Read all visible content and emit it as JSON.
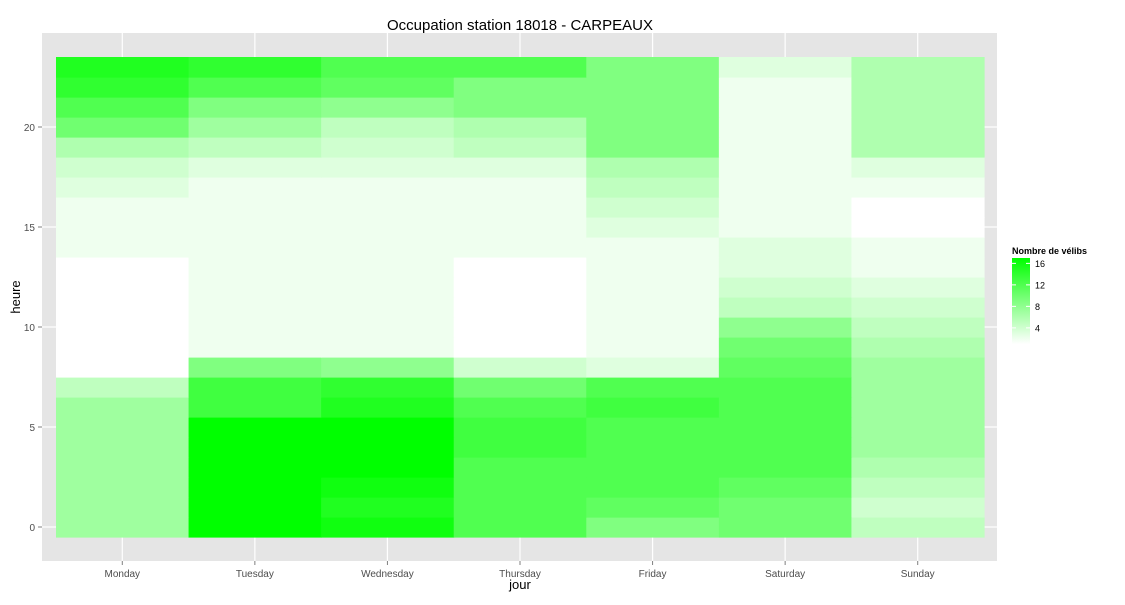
{
  "chart_data": {
    "type": "heatmap",
    "title": "Occupation station 18018 - CARPEAUX",
    "xlabel": "jour",
    "ylabel": "heure",
    "categories": [
      "Monday",
      "Tuesday",
      "Wednesday",
      "Thursday",
      "Friday",
      "Saturday",
      "Sunday"
    ],
    "y": [
      0,
      1,
      2,
      3,
      4,
      5,
      6,
      7,
      8,
      9,
      10,
      11,
      12,
      13,
      14,
      15,
      16,
      17,
      18,
      19,
      20,
      21,
      22,
      23
    ],
    "y_ticks": [
      0,
      5,
      10,
      15,
      20
    ],
    "ylim": [
      -0.5,
      23.5
    ],
    "grid": true,
    "legend": {
      "title": "Nombre de vélibs",
      "ticks": [
        4,
        8,
        12,
        16
      ],
      "range": [
        1,
        17
      ],
      "low_color": "#ffffff",
      "high_color": "#00ff00",
      "placement": "right"
    },
    "values": [
      [
        7,
        17,
        16,
        12,
        9,
        10,
        5
      ],
      [
        7,
        17,
        15,
        12,
        11,
        10,
        4
      ],
      [
        7,
        17,
        16,
        12,
        12,
        11,
        5
      ],
      [
        7,
        17,
        17,
        12,
        12,
        12,
        6
      ],
      [
        7,
        17,
        17,
        13,
        12,
        12,
        7
      ],
      [
        7,
        17,
        17,
        13,
        12,
        12,
        7
      ],
      [
        7,
        13,
        15,
        12,
        13,
        12,
        7
      ],
      [
        5,
        13,
        14,
        10,
        12,
        12,
        7
      ],
      [
        1,
        9,
        8,
        4,
        3,
        11,
        7
      ],
      [
        1,
        2,
        2,
        1,
        2,
        10,
        6
      ],
      [
        1,
        2,
        2,
        1,
        2,
        8,
        5
      ],
      [
        1,
        2,
        2,
        1,
        2,
        5,
        4
      ],
      [
        1,
        2,
        2,
        1,
        2,
        4,
        3
      ],
      [
        1,
        2,
        2,
        1,
        2,
        3,
        2
      ],
      [
        2,
        2,
        2,
        2,
        2,
        3,
        2
      ],
      [
        2,
        2,
        2,
        2,
        3,
        2,
        1
      ],
      [
        2,
        2,
        2,
        2,
        4,
        2,
        1
      ],
      [
        3,
        2,
        2,
        2,
        5,
        2,
        2
      ],
      [
        4,
        3,
        3,
        3,
        6,
        2,
        3
      ],
      [
        6,
        5,
        4,
        5,
        9,
        2,
        6
      ],
      [
        10,
        7,
        5,
        6,
        9,
        2,
        6
      ],
      [
        12,
        9,
        8,
        9,
        9,
        2,
        6
      ],
      [
        14,
        12,
        11,
        9,
        9,
        2,
        6
      ],
      [
        15,
        14,
        12,
        12,
        9,
        3,
        6
      ]
    ]
  }
}
